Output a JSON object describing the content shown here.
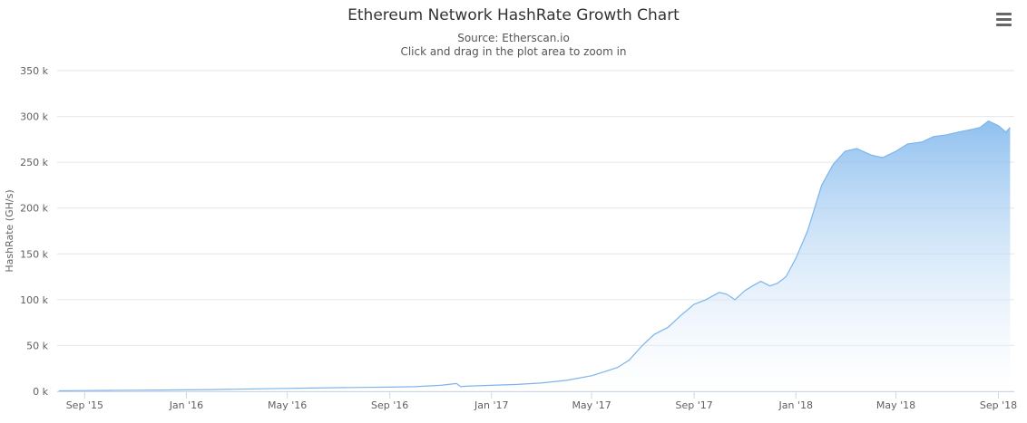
{
  "header": {
    "title": "Ethereum Network HashRate Growth Chart",
    "subtitle_line1": "Source: Etherscan.io",
    "subtitle_line2": "Click and drag in the plot area to zoom in"
  },
  "menu": {
    "icon": "hamburger-menu-icon"
  },
  "colors": {
    "series_line": "#7cb5ec",
    "area_top": "#7cb5ec",
    "area_bottom": "#ffffff",
    "grid": "#e6e6e6",
    "axis_line": "#ccd6eb"
  },
  "chart_data": {
    "type": "area",
    "title": "Ethereum Network HashRate Growth Chart",
    "subtitle": "Source: Etherscan.io",
    "xlabel": "",
    "ylabel": "HashRate (GH/s)",
    "xlim": [
      "2015-07-30",
      "2018-09-20"
    ],
    "ylim": [
      0,
      350000
    ],
    "grid": true,
    "legend": "none",
    "x_tick_labels": [
      "Sep '15",
      "Jan '16",
      "May '16",
      "Sep '16",
      "Jan '17",
      "May '17",
      "Sep '17",
      "Jan '18",
      "May '18",
      "Sep '18"
    ],
    "y_tick_labels": [
      "0 k",
      "50 k",
      "100 k",
      "150 k",
      "200 k",
      "250 k",
      "300 k",
      "350 k"
    ],
    "series": [
      {
        "x": [
          "2015-08-01",
          "2015-09-01",
          "2015-10-01",
          "2015-11-01",
          "2015-12-01",
          "2016-01-01",
          "2016-02-01",
          "2016-03-01",
          "2016-04-01",
          "2016-05-01",
          "2016-06-01",
          "2016-07-01",
          "2016-08-01",
          "2016-09-01",
          "2016-10-01",
          "2016-11-01",
          "2016-11-20",
          "2016-11-25",
          "2016-12-01",
          "2016-12-15",
          "2017-01-01",
          "2017-02-01",
          "2017-03-01",
          "2017-04-01",
          "2017-05-01",
          "2017-05-15",
          "2017-06-01",
          "2017-06-15",
          "2017-07-01",
          "2017-07-15",
          "2017-08-01",
          "2017-08-15",
          "2017-09-01",
          "2017-09-15",
          "2017-10-01",
          "2017-10-10",
          "2017-10-20",
          "2017-11-01",
          "2017-11-10",
          "2017-11-20",
          "2017-12-01",
          "2017-12-10",
          "2017-12-20",
          "2018-01-01",
          "2018-01-15",
          "2018-02-01",
          "2018-02-15",
          "2018-03-01",
          "2018-03-15",
          "2018-04-01",
          "2018-04-15",
          "2018-05-01",
          "2018-05-15",
          "2018-06-01",
          "2018-06-15",
          "2018-07-01",
          "2018-07-15",
          "2018-08-01",
          "2018-08-10",
          "2018-08-20",
          "2018-09-01",
          "2018-09-10",
          "2018-09-15"
        ],
        "values": [
          500,
          800,
          1000,
          1200,
          1400,
          1600,
          1900,
          2300,
          2800,
          3200,
          3600,
          4000,
          4300,
          4500,
          5000,
          6500,
          8500,
          5000,
          5500,
          6000,
          6500,
          7500,
          9000,
          12000,
          17000,
          21000,
          26000,
          34000,
          50000,
          62000,
          70000,
          82000,
          95000,
          100000,
          108000,
          106000,
          100000,
          110000,
          115000,
          120000,
          115000,
          118000,
          125000,
          145000,
          175000,
          225000,
          248000,
          262000,
          265000,
          258000,
          255000,
          262000,
          270000,
          272000,
          278000,
          280000,
          283000,
          286000,
          288000,
          295000,
          290000,
          283000,
          288000
        ]
      }
    ]
  }
}
